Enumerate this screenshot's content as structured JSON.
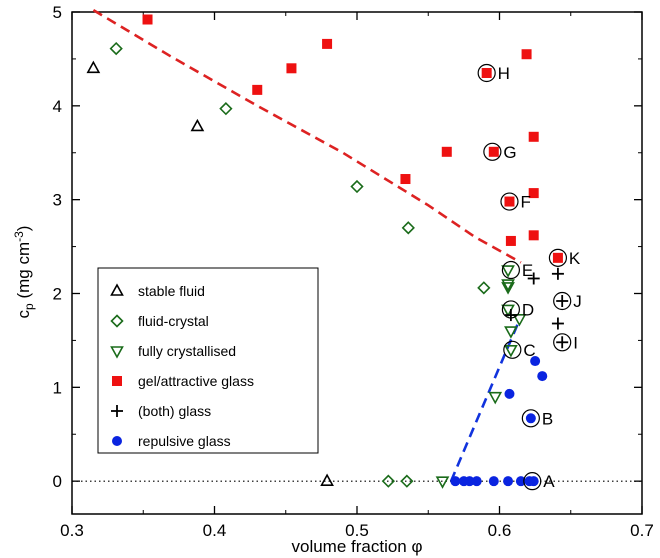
{
  "chart_data": {
    "type": "scatter",
    "xlabel": "volume fraction φ",
    "ylabel_main": "c",
    "ylabel_sub": "p",
    "ylabel_unit_pre": "(mg cm",
    "ylabel_unit_sup": "-3",
    "ylabel_unit_post": ")",
    "xlim": [
      0.3,
      0.7
    ],
    "ylim": [
      -0.35,
      5
    ],
    "xticks": [
      0.3,
      0.4,
      0.5,
      0.6,
      0.7
    ],
    "xtick_labels": [
      "0.3",
      "0.4",
      "0.5",
      "0.6",
      "0.7"
    ],
    "yticks": [
      0,
      1,
      2,
      3,
      4,
      5
    ],
    "ytick_labels": [
      "0",
      "1",
      "2",
      "3",
      "4",
      "5"
    ],
    "grid": false,
    "legend_position": "bottom-left",
    "series": [
      {
        "name": "stable fluid",
        "marker": "triangle-up",
        "color": "#000000",
        "points": [
          [
            0.315,
            4.4
          ],
          [
            0.388,
            3.78
          ],
          [
            0.479,
            0.0
          ]
        ]
      },
      {
        "name": "fluid-crystal",
        "marker": "diamond",
        "color": "#1a6b1a",
        "points": [
          [
            0.331,
            4.61
          ],
          [
            0.408,
            3.97
          ],
          [
            0.5,
            3.14
          ],
          [
            0.536,
            2.7
          ],
          [
            0.522,
            0.0
          ],
          [
            0.535,
            0.0
          ],
          [
            0.589,
            2.06
          ]
        ]
      },
      {
        "name": "fully crystallised",
        "marker": "triangle-down",
        "color": "#1a6b1a",
        "points": [
          [
            0.56,
            0.0
          ],
          [
            0.606,
            2.25
          ],
          [
            0.606,
            2.1
          ],
          [
            0.606,
            2.07
          ],
          [
            0.606,
            1.83
          ],
          [
            0.608,
            1.6
          ],
          [
            0.608,
            1.4
          ],
          [
            0.614,
            1.73
          ],
          [
            0.597,
            0.9
          ]
        ]
      },
      {
        "name": "gel/attractive glass",
        "marker": "square",
        "color": "#ee1111",
        "points": [
          [
            0.353,
            4.92
          ],
          [
            0.43,
            4.17
          ],
          [
            0.454,
            4.4
          ],
          [
            0.479,
            4.66
          ],
          [
            0.534,
            3.22
          ],
          [
            0.563,
            3.51
          ],
          [
            0.591,
            4.35
          ],
          [
            0.596,
            3.51
          ],
          [
            0.607,
            2.98
          ],
          [
            0.608,
            2.56
          ],
          [
            0.619,
            4.55
          ],
          [
            0.624,
            3.67
          ],
          [
            0.624,
            3.07
          ],
          [
            0.624,
            2.62
          ],
          [
            0.641,
            2.38
          ]
        ]
      },
      {
        "name": "(both) glass",
        "marker": "plus",
        "color": "#000000",
        "points": [
          [
            0.608,
            1.77
          ],
          [
            0.624,
            2.16
          ],
          [
            0.641,
            2.21
          ],
          [
            0.641,
            1.68
          ],
          [
            0.644,
            1.92
          ],
          [
            0.644,
            1.48
          ]
        ]
      },
      {
        "name": "repulsive glass",
        "marker": "circle",
        "color": "#0a24e0",
        "points": [
          [
            0.569,
            0.0
          ],
          [
            0.575,
            0.0
          ],
          [
            0.579,
            0.0
          ],
          [
            0.584,
            0.0
          ],
          [
            0.596,
            0.0
          ],
          [
            0.606,
            0.0
          ],
          [
            0.615,
            0.0
          ],
          [
            0.621,
            0.0
          ],
          [
            0.624,
            0.0
          ],
          [
            0.622,
            0.67
          ],
          [
            0.607,
            0.93
          ],
          [
            0.625,
            1.28
          ],
          [
            0.63,
            1.12
          ]
        ]
      }
    ],
    "highlighted_points": [
      {
        "label": "A",
        "x": 0.623,
        "y": 0.0
      },
      {
        "label": "B",
        "x": 0.622,
        "y": 0.67
      },
      {
        "label": "C",
        "x": 0.609,
        "y": 1.4
      },
      {
        "label": "D",
        "x": 0.608,
        "y": 1.83
      },
      {
        "label": "E",
        "x": 0.608,
        "y": 2.25
      },
      {
        "label": "F",
        "x": 0.607,
        "y": 2.98
      },
      {
        "label": "G",
        "x": 0.595,
        "y": 3.51
      },
      {
        "label": "H",
        "x": 0.591,
        "y": 4.35
      },
      {
        "label": "I",
        "x": 0.644,
        "y": 1.48
      },
      {
        "label": "J",
        "x": 0.644,
        "y": 1.92
      },
      {
        "label": "K",
        "x": 0.641,
        "y": 2.38
      }
    ],
    "reference_lines": [
      {
        "style": "dashed",
        "color": "#dd2222",
        "points": [
          [
            0.315,
            5.02
          ],
          [
            0.37,
            4.52
          ],
          [
            0.43,
            4.0
          ],
          [
            0.49,
            3.5
          ],
          [
            0.55,
            2.94
          ],
          [
            0.583,
            2.6
          ],
          [
            0.615,
            2.33
          ]
        ]
      },
      {
        "style": "dashed",
        "color": "#1133dd",
        "points": [
          [
            0.566,
            0.0
          ],
          [
            0.614,
            1.72
          ]
        ]
      },
      {
        "style": "dotted",
        "color": "#000000",
        "points": [
          [
            0.3,
            0.0
          ],
          [
            0.7,
            0.0
          ]
        ]
      }
    ]
  }
}
